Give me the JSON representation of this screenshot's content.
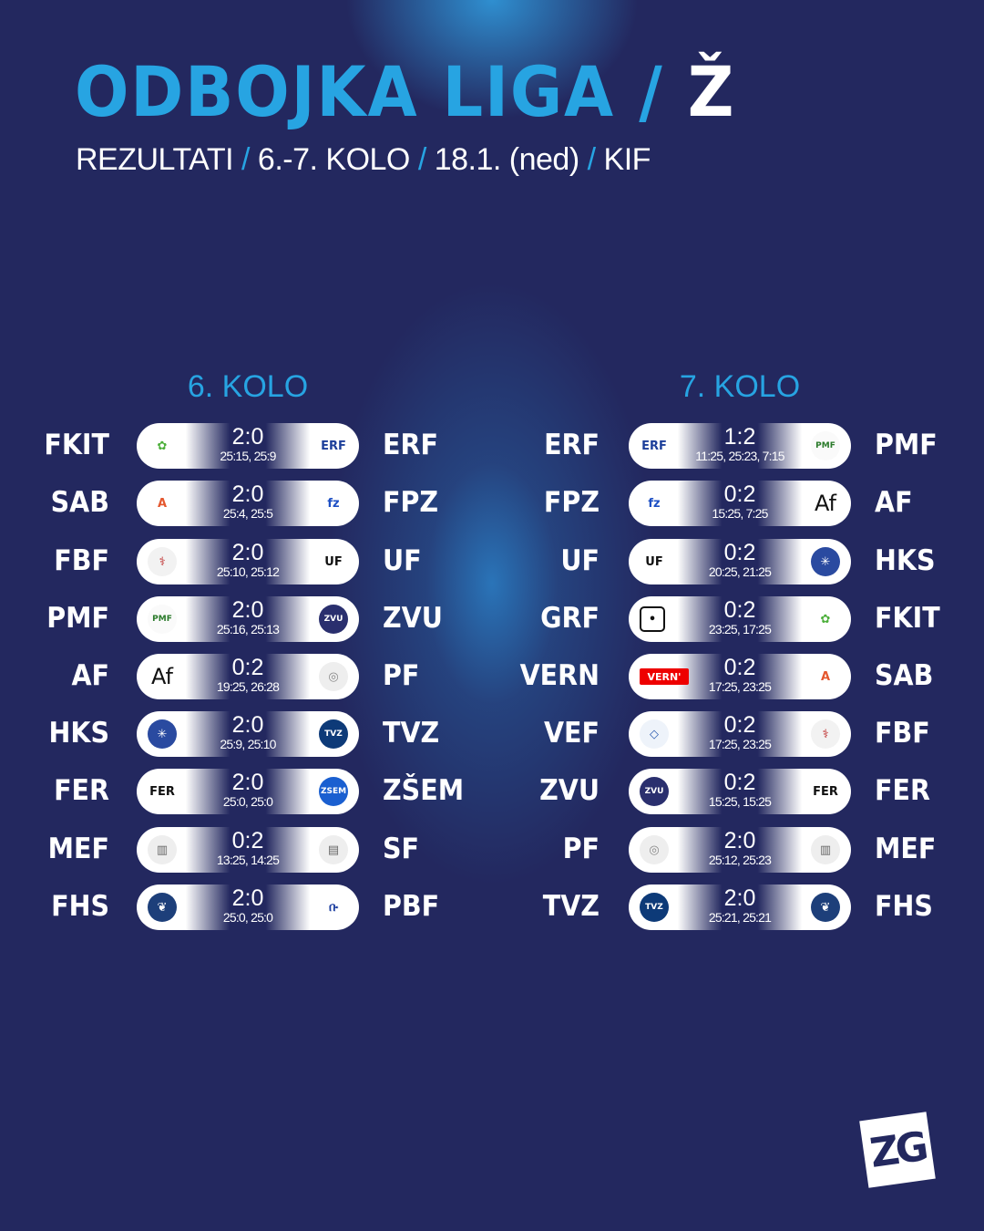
{
  "header": {
    "title": "ODBOJKA LIGA",
    "title_sep": " / ",
    "title_suffix": "Ž",
    "subtitle": [
      {
        "t": "REZULTATI"
      },
      {
        "t": "6.-7. KOLO"
      },
      {
        "t": "18.1. (ned)"
      },
      {
        "t": "KIF"
      }
    ],
    "sep": " / "
  },
  "rounds": [
    {
      "label": "6. KOLO",
      "matches": [
        {
          "home": "FKIT",
          "away": "ERF",
          "score": "2:0",
          "sets": "25:15, 25:9"
        },
        {
          "home": "SAB",
          "away": "FPZ",
          "score": "2:0",
          "sets": "25:4, 25:5"
        },
        {
          "home": "FBF",
          "away": "UF",
          "score": "2:0",
          "sets": "25:10, 25:12"
        },
        {
          "home": "PMF",
          "away": "ZVU",
          "score": "2:0",
          "sets": "25:16, 25:13"
        },
        {
          "home": "AF",
          "away": "PF",
          "score": "0:2",
          "sets": "19:25, 26:28"
        },
        {
          "home": "HKS",
          "away": "TVZ",
          "score": "2:0",
          "sets": "25:9, 25:10"
        },
        {
          "home": "FER",
          "away": "ZŠEM",
          "score": "2:0",
          "sets": "25:0, 25:0"
        },
        {
          "home": "MEF",
          "away": "SF",
          "score": "0:2",
          "sets": "13:25, 14:25"
        },
        {
          "home": "FHS",
          "away": "PBF",
          "score": "2:0",
          "sets": "25:0, 25:0"
        }
      ]
    },
    {
      "label": "7. KOLO",
      "matches": [
        {
          "home": "ERF",
          "away": "PMF",
          "score": "1:2",
          "sets": "11:25, 25:23, 7:15"
        },
        {
          "home": "FPZ",
          "away": "AF",
          "score": "0:2",
          "sets": "15:25, 7:25"
        },
        {
          "home": "UF",
          "away": "HKS",
          "score": "0:2",
          "sets": "20:25, 21:25"
        },
        {
          "home": "GRF",
          "away": "FKIT",
          "score": "0:2",
          "sets": "23:25, 17:25"
        },
        {
          "home": "VERN",
          "away": "SAB",
          "score": "0:2",
          "sets": "17:25, 23:25"
        },
        {
          "home": "VEF",
          "away": "FBF",
          "score": "0:2",
          "sets": "17:25, 23:25"
        },
        {
          "home": "ZVU",
          "away": "FER",
          "score": "0:2",
          "sets": "15:25, 15:25"
        },
        {
          "home": "PF",
          "away": "MEF",
          "score": "2:0",
          "sets": "25:12, 25:23"
        },
        {
          "home": "TVZ",
          "away": "FHS",
          "score": "2:0",
          "sets": "25:21, 25:21"
        }
      ]
    }
  ],
  "logos": {
    "FKIT": {
      "text": "✿",
      "color": "#4caf3a",
      "bg": "transparent"
    },
    "ERF": {
      "text": "ERF",
      "color": "#1d3f9a",
      "bg": "transparent"
    },
    "SAB": {
      "text": "A",
      "color": "#e4572e",
      "bg": "transparent"
    },
    "FPZ": {
      "text": "fz",
      "color": "#1d4fc4",
      "bg": "transparent"
    },
    "FBF": {
      "text": "⚕",
      "color": "#b22",
      "bg": "#f2f2f2"
    },
    "UF": {
      "text": "UF",
      "color": "#111",
      "bg": "transparent"
    },
    "PMF": {
      "text": "PMF",
      "color": "#2a7a2a",
      "bg": "#fafafa"
    },
    "ZVU": {
      "text": "ZVU",
      "color": "#fff",
      "bg": "#2a2f6e"
    },
    "AF": {
      "text": "Af",
      "color": "#111",
      "bg": "transparent"
    },
    "PF": {
      "text": "◎",
      "color": "#888",
      "bg": "#eee"
    },
    "HKS": {
      "text": "✳",
      "color": "#fff",
      "bg": "#2a4aa0"
    },
    "TVZ": {
      "text": "TVZ",
      "color": "#fff",
      "bg": "#0d3a78"
    },
    "FER": {
      "text": "FER",
      "color": "#111",
      "bg": "transparent"
    },
    "ZŠEM": {
      "text": "ZSEM",
      "color": "#fff",
      "bg": "#1a5fd0"
    },
    "MEF": {
      "text": "▥",
      "color": "#666",
      "bg": "#eee"
    },
    "SF": {
      "text": "▤",
      "color": "#666",
      "bg": "#eee"
    },
    "FHS": {
      "text": "❦",
      "color": "#fff",
      "bg": "#1d3f7a"
    },
    "PBF": {
      "text": "ቡ",
      "color": "#1d3fa0",
      "bg": "transparent"
    },
    "GRF": {
      "text": "•",
      "color": "#111",
      "bg": "transparent"
    },
    "VERN": {
      "text": "VERN'",
      "color": "#fff",
      "bg": "#e00"
    },
    "VEF": {
      "text": "◇",
      "color": "#2a5ab0",
      "bg": "#eef3fa"
    }
  },
  "brand": {
    "logo_text": "ZG"
  },
  "colors": {
    "background": "#23285f",
    "accent": "#27a4e2",
    "text": "#ffffff"
  }
}
